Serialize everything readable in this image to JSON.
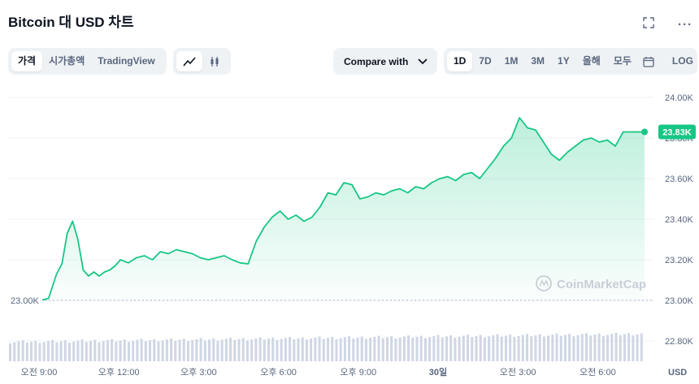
{
  "header": {
    "title": "Bitcoin 대 USD 차트",
    "fullscreen_icon": "fullscreen-icon",
    "more_icon": "more-icon",
    "more_label": "···"
  },
  "view_tabs": [
    {
      "label": "가격",
      "active": true
    },
    {
      "label": "시가총액",
      "active": false
    },
    {
      "label": "TradingView",
      "active": false
    }
  ],
  "chart_type_buttons": [
    {
      "icon": "line-chart-icon",
      "active": true
    },
    {
      "icon": "candlestick-icon",
      "active": false
    }
  ],
  "compare": {
    "label": "Compare with",
    "icon": "chevron-down-icon"
  },
  "ranges": [
    {
      "label": "1D",
      "active": true
    },
    {
      "label": "7D",
      "active": false
    },
    {
      "label": "1M",
      "active": false
    },
    {
      "label": "3M",
      "active": false
    },
    {
      "label": "1Y",
      "active": false
    },
    {
      "label": "올해",
      "active": false
    },
    {
      "label": "모두",
      "active": false
    }
  ],
  "calendar_icon": "calendar-icon",
  "log_label": "LOG",
  "watermark": "CoinMarketCap",
  "colors": {
    "line": "#16c784",
    "fill_top": "#16c784",
    "volume": "#cfd6e4",
    "grid": "#eff2f5"
  },
  "chart_data": {
    "type": "line",
    "title": "Bitcoin 대 USD 차트",
    "y_unit": "USD",
    "y_ticks": [
      "24.00K",
      "23.80K",
      "23.60K",
      "23.40K",
      "23.20K",
      "23.00K",
      "22.80K"
    ],
    "y_tick_values": [
      24000,
      23800,
      23600,
      23400,
      23200,
      23000,
      22800
    ],
    "ylim": [
      22800,
      24000
    ],
    "x_ticks": [
      "오전 9:00",
      "오후 12:00",
      "오후 3:00",
      "오후 6:00",
      "오후 9:00",
      "30일",
      "오전 3:00",
      "오전 6:00"
    ],
    "x_tick_hours": [
      0,
      3,
      6,
      9,
      12,
      15,
      18,
      21
    ],
    "xlim_hours": [
      0,
      22.7
    ],
    "start_label": "23.00K",
    "start_value": 23000,
    "current_label": "23.83K",
    "current_value": 23830,
    "grid": true,
    "series": [
      {
        "hours": [
          0,
          0.3,
          0.6,
          0.8,
          1.0,
          1.2,
          1.4,
          1.6,
          1.8,
          2.0,
          2.2,
          2.4,
          2.6,
          2.8,
          3.0,
          3.3,
          3.6,
          3.9,
          4.2,
          4.5,
          4.8,
          5.1,
          5.4,
          5.7,
          6.0,
          6.3,
          6.6,
          6.9,
          7.2,
          7.5,
          7.8,
          8.1,
          8.4,
          8.7,
          9.0,
          9.3,
          9.6,
          9.9,
          10.2,
          10.5,
          10.8,
          11.1,
          11.4,
          11.7,
          12.0,
          12.3,
          12.6,
          12.9,
          13.2,
          13.5,
          13.8,
          14.1,
          14.4,
          14.7,
          15.0,
          15.3,
          15.6,
          15.9,
          16.2,
          16.5,
          16.8,
          17.1,
          17.4,
          17.7,
          18.0,
          18.3,
          18.6,
          18.9,
          19.2,
          19.5,
          19.8,
          20.1,
          20.4,
          20.7,
          21.0,
          21.3,
          21.6,
          21.9,
          22.2,
          22.5,
          22.7
        ],
        "values": [
          23000,
          23010,
          23130,
          23180,
          23330,
          23390,
          23300,
          23150,
          23120,
          23140,
          23120,
          23140,
          23150,
          23170,
          23200,
          23185,
          23210,
          23220,
          23200,
          23240,
          23230,
          23250,
          23240,
          23230,
          23210,
          23200,
          23210,
          23220,
          23200,
          23185,
          23180,
          23290,
          23360,
          23410,
          23440,
          23400,
          23420,
          23390,
          23410,
          23460,
          23530,
          23520,
          23580,
          23570,
          23500,
          23510,
          23530,
          23520,
          23540,
          23550,
          23530,
          23560,
          23550,
          23580,
          23600,
          23610,
          23590,
          23620,
          23630,
          23600,
          23650,
          23700,
          23760,
          23800,
          23900,
          23850,
          23840,
          23780,
          23720,
          23690,
          23730,
          23760,
          23790,
          23800,
          23780,
          23790,
          23760,
          23830,
          23830,
          23830,
          23830
        ]
      }
    ]
  }
}
